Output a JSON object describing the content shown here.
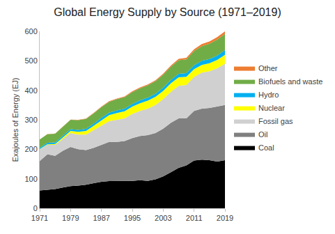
{
  "chart_data": {
    "type": "area",
    "title": "Global Energy Supply by Source (1971–2019)",
    "y_label": "Exajoules of Energy (EJ)",
    "stacked": true,
    "grid": false,
    "legend": "right",
    "x": [
      1971,
      1973,
      1975,
      1977,
      1979,
      1981,
      1983,
      1985,
      1987,
      1989,
      1991,
      1993,
      1995,
      1997,
      1999,
      2001,
      2003,
      2005,
      2007,
      2009,
      2011,
      2013,
      2015,
      2017,
      2019
    ],
    "xlim": [
      1971,
      2019
    ],
    "xticks": [
      1971,
      1979,
      1987,
      1995,
      2003,
      2011,
      2019
    ],
    "ylim": [
      0,
      600
    ],
    "yticks": [
      0,
      100,
      200,
      300,
      400,
      500,
      600
    ],
    "series": [
      {
        "name": "Coal",
        "color": "#000000",
        "values": [
          60,
          63,
          65,
          70,
          75,
          77,
          80,
          85,
          90,
          92,
          92,
          92,
          93,
          95,
          93,
          98,
          108,
          122,
          137,
          145,
          162,
          165,
          163,
          158,
          163
        ]
      },
      {
        "name": "Oil",
        "color": "#808080",
        "values": [
          100,
          120,
          113,
          125,
          133,
          123,
          117,
          120,
          125,
          133,
          133,
          136,
          145,
          150,
          155,
          157,
          162,
          168,
          168,
          160,
          168,
          173,
          177,
          187,
          187
        ]
      },
      {
        "name": "Fossil gas",
        "color": "#d0d0d0",
        "values": [
          40,
          32,
          37,
          40,
          47,
          50,
          53,
          60,
          65,
          70,
          75,
          77,
          82,
          85,
          90,
          95,
          100,
          105,
          110,
          113,
          115,
          122,
          125,
          130,
          140
        ]
      },
      {
        "name": "Nuclear",
        "color": "#ffff00",
        "values": [
          1,
          2,
          3,
          5,
          7,
          9,
          12,
          15,
          19,
          21,
          23,
          24,
          25,
          26,
          27,
          28,
          28,
          29,
          29,
          28,
          27,
          26,
          27,
          28,
          30
        ]
      },
      {
        "name": "Hydro",
        "color": "#00b0f0",
        "values": [
          4,
          5,
          5,
          6,
          6,
          7,
          7,
          7,
          8,
          8,
          9,
          9,
          9,
          10,
          10,
          10,
          11,
          11,
          12,
          12,
          13,
          14,
          14,
          15,
          16
        ]
      },
      {
        "name": "Biofuels and waste",
        "color": "#70ad47",
        "values": [
          28,
          29,
          30,
          31,
          32,
          33,
          34,
          35,
          36,
          37,
          38,
          39,
          40,
          41,
          42,
          43,
          44,
          45,
          46,
          47,
          48,
          50,
          52,
          54,
          55
        ]
      },
      {
        "name": "Other",
        "color": "#ed7d31",
        "values": [
          0.3,
          0.4,
          0.5,
          0.6,
          0.8,
          1,
          1.2,
          1.5,
          1.8,
          2,
          2.2,
          2.4,
          2.6,
          2.8,
          3,
          3.2,
          3.5,
          4,
          4.5,
          5,
          6,
          7,
          8,
          8.5,
          9
        ]
      }
    ]
  }
}
